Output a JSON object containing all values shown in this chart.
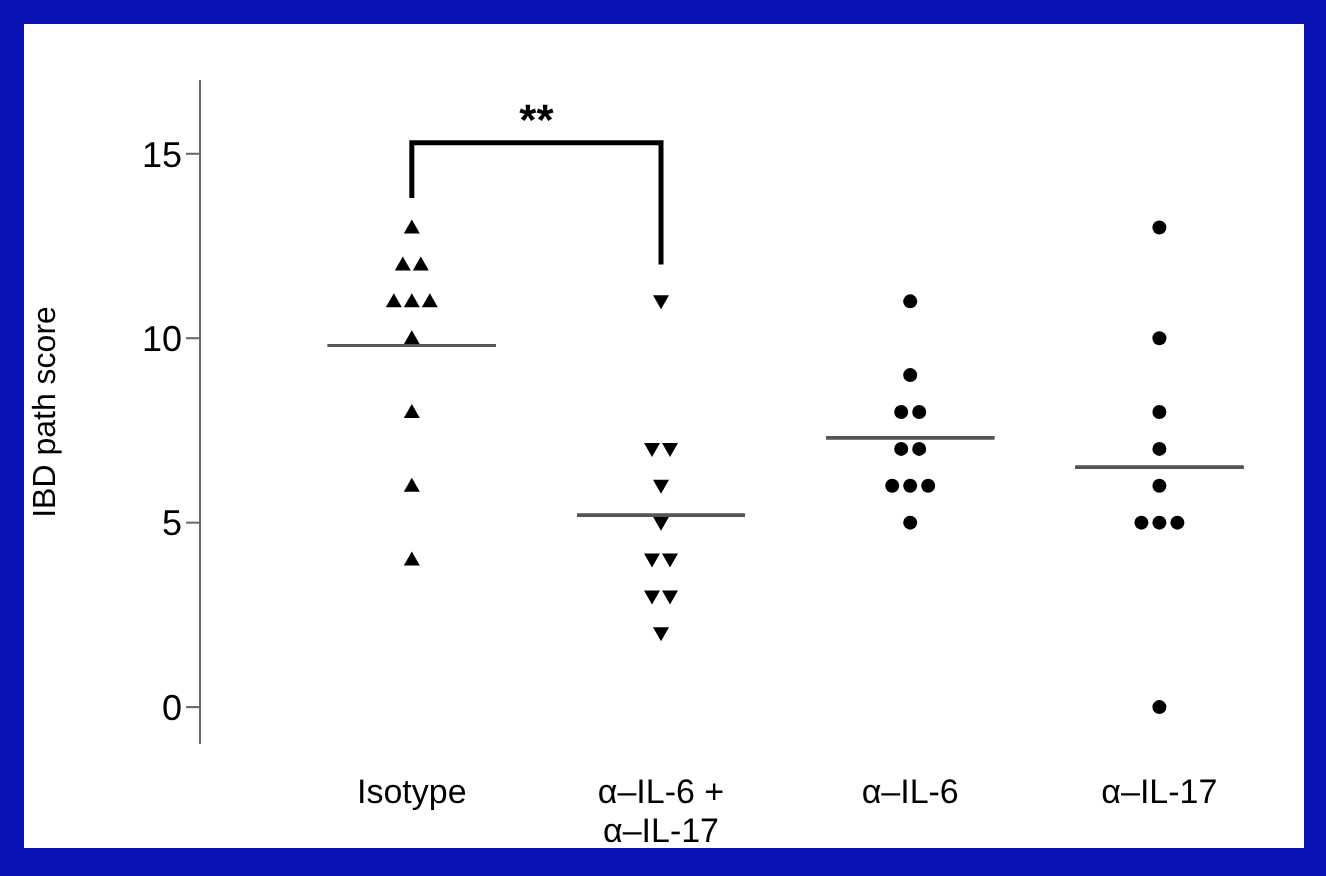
{
  "chart_data": {
    "type": "scatter",
    "ylabel": "IBD path score",
    "categories": [
      "Isotype",
      "α–IL-6 + α–IL-17",
      "α–IL-6",
      "α–IL-17"
    ],
    "series": [
      {
        "type": "scatter",
        "marker": "triangle",
        "color": "#000000",
        "x": [
          "Isotype",
          "Isotype",
          "Isotype",
          "Isotype",
          "Isotype",
          "Isotype",
          "Isotype",
          "Isotype",
          "Isotype",
          "Isotype"
        ],
        "values": [
          13,
          12,
          12,
          11,
          11,
          11,
          10,
          8,
          6,
          4
        ]
      },
      {
        "type": "scatter",
        "marker": "triangle-down",
        "color": "#000000",
        "x": [
          "α–IL-6 + α–IL-17",
          "α–IL-6 + α–IL-17",
          "α–IL-6 + α–IL-17",
          "α–IL-6 + α–IL-17",
          "α–IL-6 + α–IL-17",
          "α–IL-6 + α–IL-17",
          "α–IL-6 + α–IL-17",
          "α–IL-6 + α–IL-17",
          "α–IL-6 + α–IL-17",
          "α–IL-6 + α–IL-17"
        ],
        "values": [
          11,
          7,
          7,
          6,
          5,
          4,
          4,
          3,
          3,
          2
        ]
      },
      {
        "type": "scatter",
        "marker": "circle",
        "color": "#000000",
        "x": [
          "α–IL-6",
          "α–IL-6",
          "α–IL-6",
          "α–IL-6",
          "α–IL-6",
          "α–IL-6",
          "α–IL-6",
          "α–IL-6",
          "α–IL-6",
          "α–IL-6"
        ],
        "values": [
          11,
          9,
          8,
          8,
          7,
          7,
          6,
          6,
          6,
          5
        ]
      },
      {
        "type": "scatter",
        "marker": "circle",
        "color": "#000000",
        "x": [
          "α–IL-17",
          "α–IL-17",
          "α–IL-17",
          "α–IL-17",
          "α–IL-17",
          "α–IL-17",
          "α–IL-17",
          "α–IL-17",
          "α–IL-17"
        ],
        "values": [
          13,
          10,
          8,
          7,
          6,
          5,
          5,
          5,
          0
        ]
      },
      {
        "type": "box",
        "color": "#555555",
        "boxes": [
          {
            "low": 9.8,
            "q1": 9.8,
            "median": 9.8,
            "q3": 9.8,
            "high": 9.8
          },
          {
            "low": 5.2,
            "q1": 5.2,
            "median": 5.2,
            "q3": 5.2,
            "high": 5.2
          },
          {
            "low": 7.3,
            "q1": 7.3,
            "median": 7.3,
            "q3": 7.3,
            "high": 7.3
          },
          {
            "low": 6.5,
            "q1": 6.5,
            "median": 6.5,
            "q3": 6.5,
            "high": 6.5
          }
        ]
      }
    ],
    "ylim": [
      -1,
      17
    ],
    "yticks": [
      0,
      5,
      10,
      15
    ],
    "annotations": [
      "**"
    ]
  }
}
